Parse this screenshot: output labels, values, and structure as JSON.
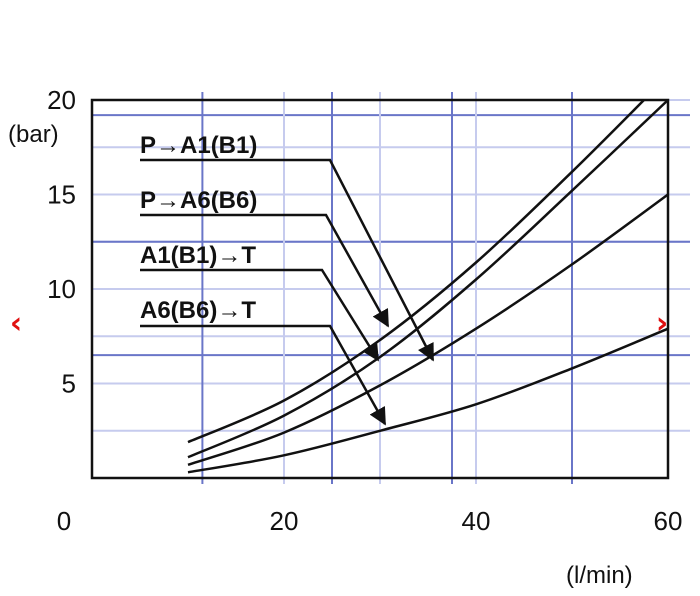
{
  "chart_data": {
    "type": "line",
    "title": "",
    "xlabel": "(l/min)",
    "ylabel": "(bar)",
    "xlim": [
      0,
      60
    ],
    "ylim": [
      0,
      20
    ],
    "x_ticks": [
      "0",
      "20",
      "40",
      "60"
    ],
    "y_ticks": [
      "5",
      "10",
      "15",
      "20"
    ],
    "grid": true,
    "series": [
      {
        "name": "P→A1(B1)",
        "x": [
          10,
          20,
          30,
          40,
          50,
          57.5
        ],
        "y": [
          1.9,
          4.1,
          7.3,
          11.4,
          16.2,
          20.0
        ]
      },
      {
        "name": "P→A6(B6)",
        "x": [
          10,
          20,
          30,
          40,
          50,
          60
        ],
        "y": [
          1.1,
          3.3,
          6.4,
          10.5,
          15.2,
          20.0
        ]
      },
      {
        "name": "A1(B1)→T",
        "x": [
          10,
          20,
          30,
          40,
          50,
          60
        ],
        "y": [
          0.7,
          2.4,
          4.9,
          7.9,
          11.3,
          15.0
        ]
      },
      {
        "name": "A6(B6)→T",
        "x": [
          10,
          20,
          30,
          40,
          50,
          60
        ],
        "y": [
          0.3,
          1.2,
          2.5,
          3.9,
          5.8,
          7.9
        ]
      }
    ]
  },
  "colors": {
    "curve": "#111111",
    "grid_major": "#6a76c8",
    "grid_minor": "#c6cbee",
    "nav_arrow": "#e01010"
  },
  "navigation": {
    "prev_icon": "chevron-left-icon",
    "next_icon": "chevron-right-icon",
    "prev_glyph": "‹",
    "next_glyph": "›"
  }
}
